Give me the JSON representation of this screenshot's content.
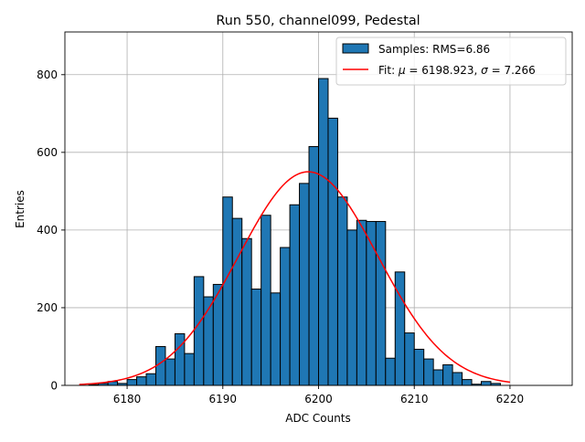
{
  "chart_data": {
    "type": "histogram",
    "title": "Run 550, channel099, Pedestal",
    "xlabel": "ADC Counts",
    "ylabel": "Entries",
    "xlim": [
      6173.5,
      6226.5
    ],
    "ylim": [
      0,
      910
    ],
    "xticks": [
      6180,
      6190,
      6200,
      6210,
      6220
    ],
    "yticks": [
      0,
      200,
      400,
      600,
      800
    ],
    "grid": true,
    "legend_position": "top-right",
    "bins": {
      "start": 6175,
      "width": 1,
      "values": [
        0,
        2,
        5,
        10,
        5,
        15,
        22,
        30,
        100,
        68,
        133,
        82,
        280,
        228,
        260,
        485,
        430,
        378,
        248,
        438,
        238,
        355,
        465,
        520,
        615,
        790,
        688,
        485,
        400,
        425,
        422,
        422,
        70,
        292,
        135,
        93,
        68,
        40,
        53,
        33,
        15,
        3,
        10,
        5,
        0,
        0
      ]
    },
    "fit": {
      "mu": 6198.923,
      "sigma": 7.266,
      "peak": 550,
      "x_range": [
        6175,
        6220
      ]
    },
    "legend": [
      {
        "label": "Samples: RMS=6.86",
        "kind": "patch",
        "color": "#1f77b4"
      },
      {
        "label_prefix": "Fit: ",
        "label_mu": "μ",
        "label_mid": " = 6198.923, ",
        "label_sigma": "σ",
        "label_end": " = 7.266",
        "kind": "line",
        "color": "#ff0000"
      }
    ],
    "colors": {
      "bar_fill": "#1f77b4",
      "bar_edge": "#000000",
      "fit_line": "#ff0000",
      "grid": "#b0b0b0"
    }
  }
}
